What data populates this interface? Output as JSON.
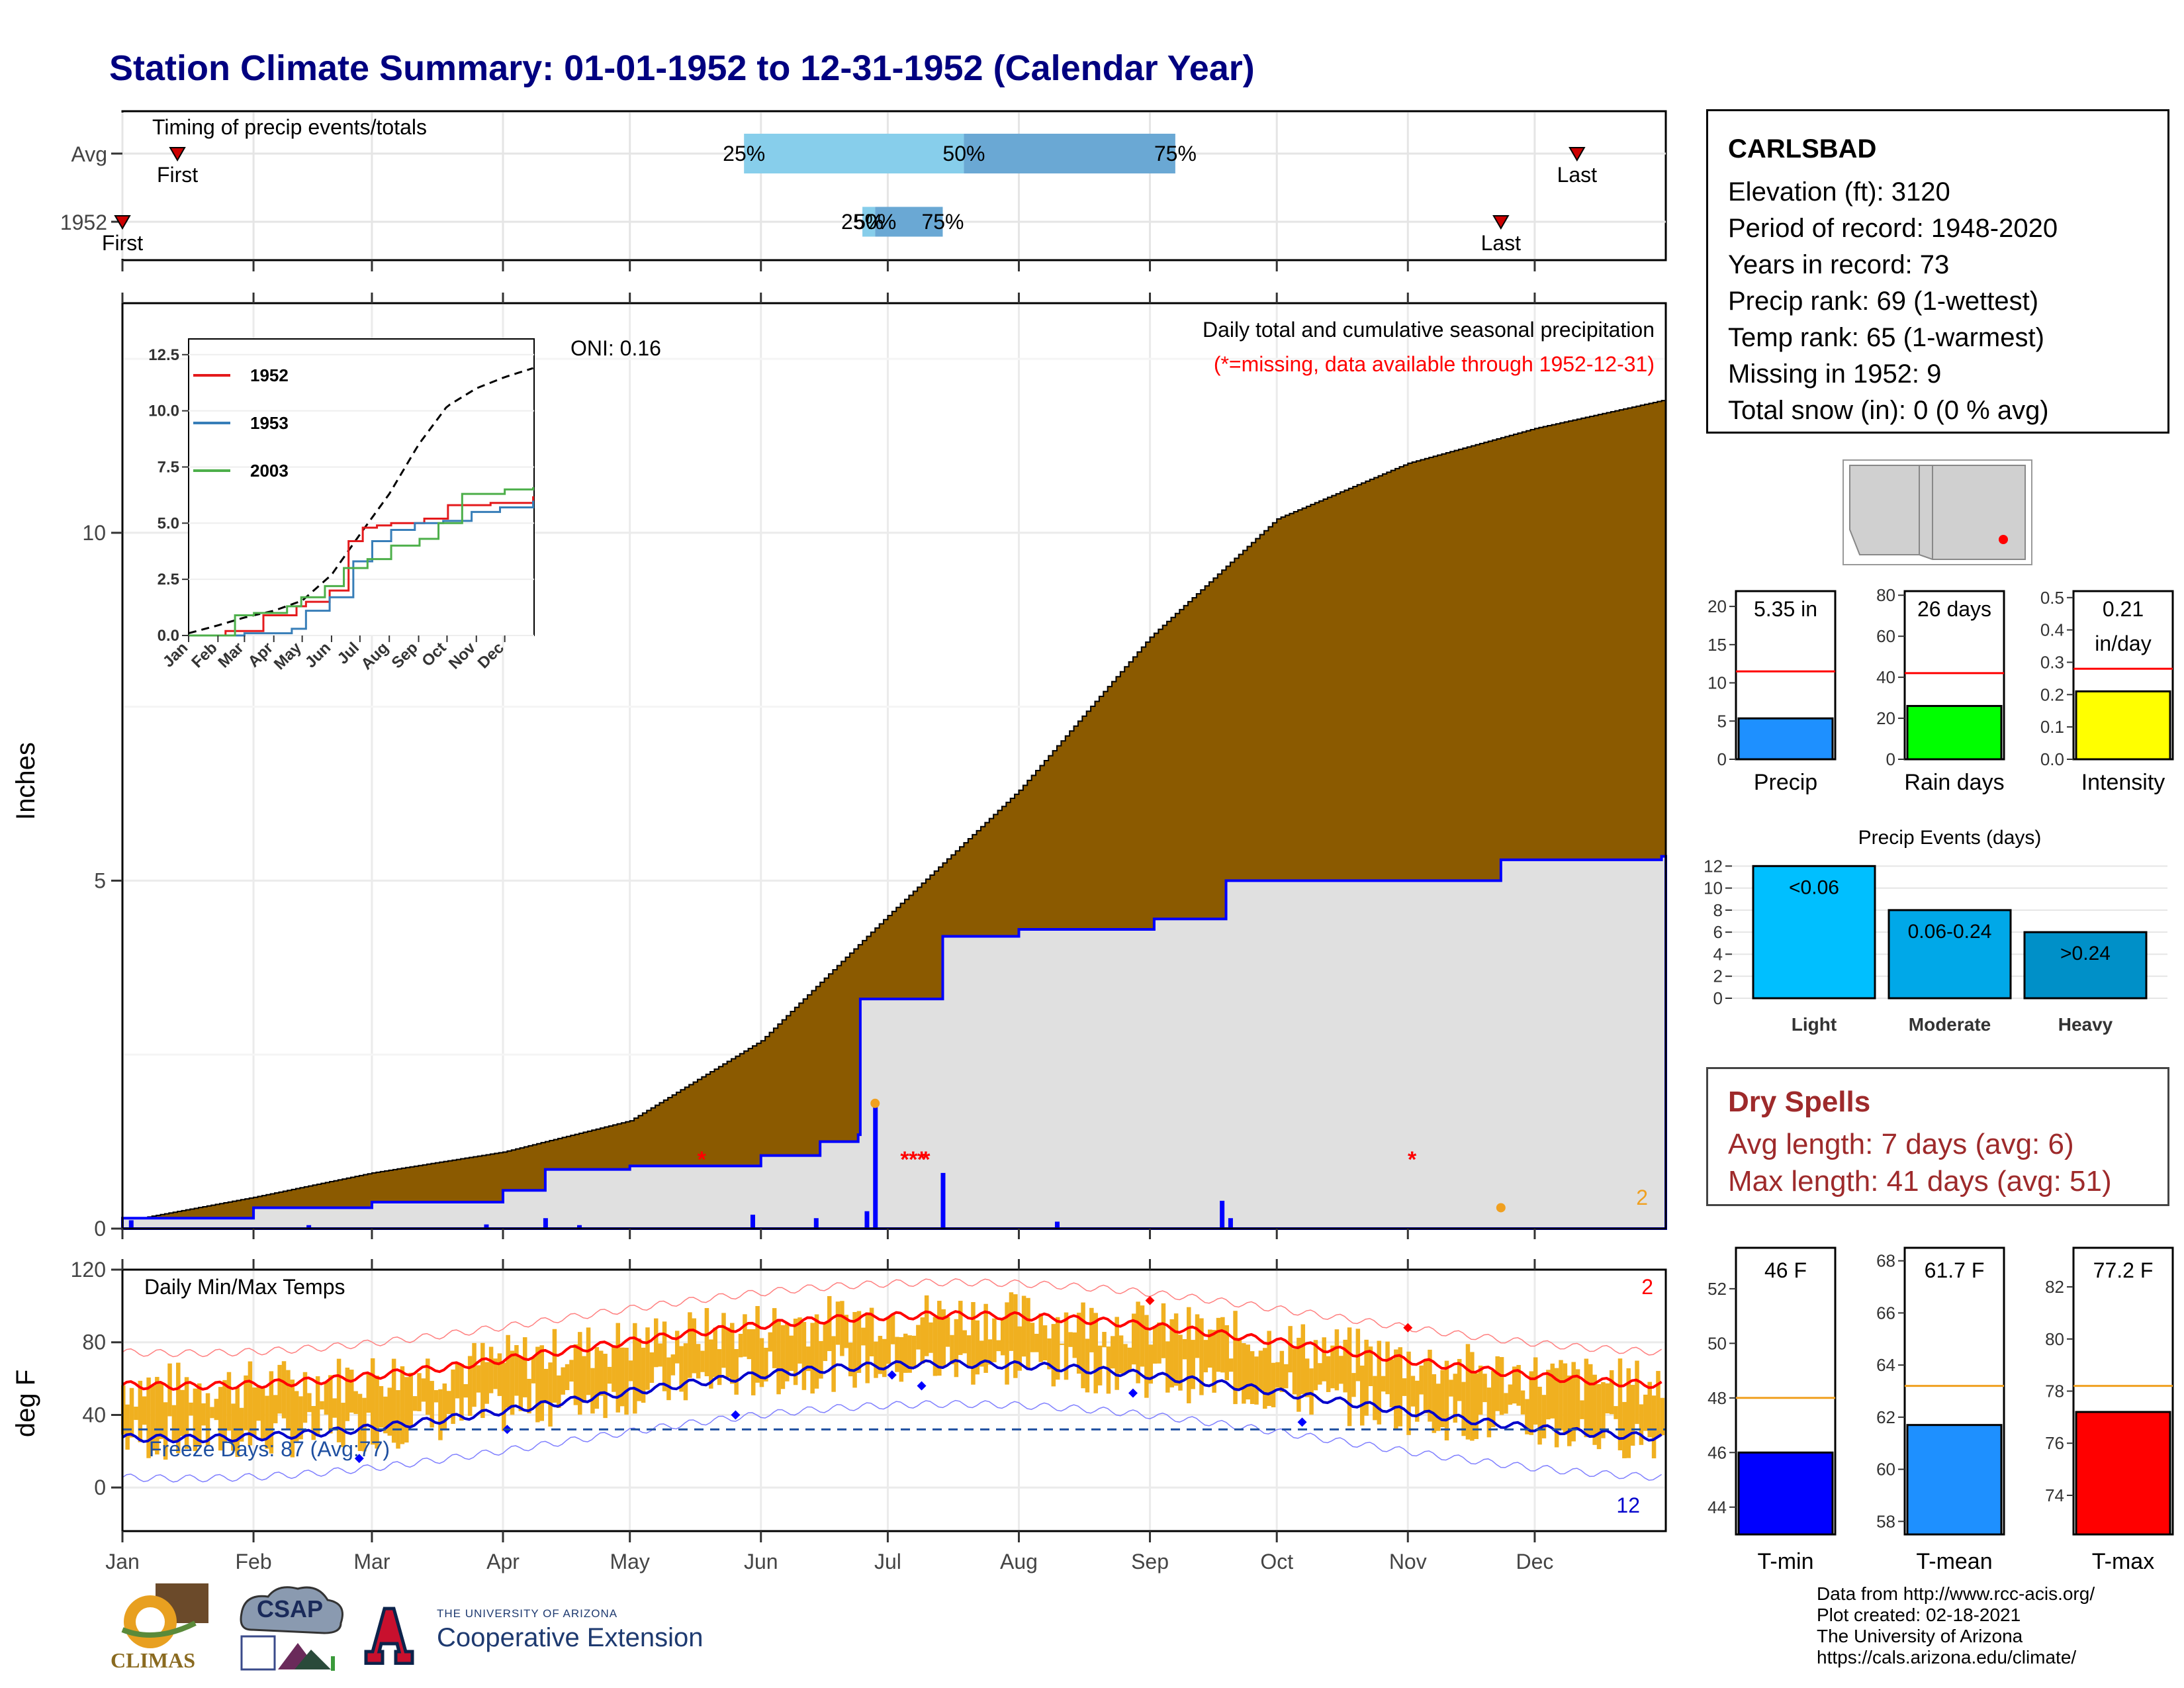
{
  "title": "Station Climate Summary: 01-01-1952 to 12-31-1952 (Calendar Year)",
  "colors": {
    "title": "#000080",
    "cum_avg": "#8B5A00",
    "cum_year": "#0000ff",
    "area_gray": "#e0e0e0",
    "tmax": "#ff0000",
    "tmin": "#0000cc",
    "bars": "#f0b020",
    "dry": "#9e2a2b"
  },
  "timing": {
    "title": "Timing of precip events/totals",
    "rows": [
      {
        "label": "Avg",
        "first_label": "First",
        "last_label": "Last",
        "p25": "25%",
        "p50": "50%",
        "p75": "75%",
        "first_doy": 14,
        "last_doy": 345,
        "q25_doy": 148,
        "q50_doy": 200,
        "q75_doy": 250
      },
      {
        "label": "1952",
        "first_label": "First",
        "last_label": "Last",
        "p25": "25%",
        "p50": "50%",
        "p75": "75%",
        "first_doy": 1,
        "last_doy": 327,
        "q25_doy": 176,
        "q50_doy": 179,
        "q75_doy": 195
      }
    ]
  },
  "precip_panel": {
    "ylabel": "Inches",
    "oni": "ONI: 0.16",
    "note1": "Daily total and cumulative seasonal precipitation",
    "note2": "(*=missing, data available through 1952-12-31)",
    "count_label": "2",
    "yticks": [
      "0",
      "5",
      "10"
    ],
    "months": [
      "Jan",
      "Feb",
      "Mar",
      "Apr",
      "May",
      "Jun",
      "Jul",
      "Aug",
      "Sep",
      "Oct",
      "Nov",
      "Dec"
    ]
  },
  "inset": {
    "yticks": [
      "0.0",
      "2.5",
      "5.0",
      "7.5",
      "10.0",
      "12.5"
    ],
    "months": [
      "Jan",
      "Feb",
      "Mar",
      "Apr",
      "May",
      "Jun",
      "Jul",
      "Aug",
      "Sep",
      "Oct",
      "Nov",
      "Dec"
    ],
    "legend": [
      {
        "name": "1952",
        "color": "#e41a1c"
      },
      {
        "name": "1953",
        "color": "#377eb8"
      },
      {
        "name": "2003",
        "color": "#4daf4a"
      }
    ]
  },
  "temp_panel": {
    "ylabel": "deg F",
    "title": "Daily Min/Max Temps",
    "freeze": "Freeze Days: 87 (Avg:77)",
    "count_hi": "2",
    "count_lo": "12",
    "yticks": [
      "0",
      "40",
      "80",
      "120"
    ]
  },
  "info": {
    "station": "CARLSBAD",
    "lines": [
      "Elevation (ft): 3120",
      "Period of record: 1948-2020",
      "Years in record: 73",
      "Precip rank: 69 (1-wettest)",
      "Temp rank: 65 (1-warmest)",
      "Missing in 1952: 9",
      "Total snow (in): 0 (0 % avg)"
    ]
  },
  "mini_bars": [
    {
      "label": "Precip",
      "value_text": "5.35 in",
      "value": 5.35,
      "avg": 11.5,
      "ymax": 22,
      "ticks": [
        "0",
        "5",
        "10",
        "15",
        "20"
      ],
      "tick_vals": [
        0,
        5,
        10,
        15,
        20
      ],
      "color": "#1e90ff"
    },
    {
      "label": "Rain days",
      "value_text": "26 days",
      "value": 26,
      "avg": 42,
      "ymax": 82,
      "ticks": [
        "0",
        "20",
        "40",
        "60",
        "80"
      ],
      "tick_vals": [
        0,
        20,
        40,
        60,
        80
      ],
      "color": "#00ff00"
    },
    {
      "label": "Intensity",
      "value_text": "0.21",
      "value_text2": "in/day",
      "value": 0.21,
      "avg": 0.28,
      "ymax": 0.52,
      "ticks": [
        "0.0",
        "0.1",
        "0.2",
        "0.3",
        "0.4",
        "0.5"
      ],
      "tick_vals": [
        0,
        0.1,
        0.2,
        0.3,
        0.4,
        0.5
      ],
      "color": "#ffff00"
    }
  ],
  "precip_events": {
    "title": "Precip Events (days)",
    "yticks": [
      "0",
      "2",
      "4",
      "6",
      "8",
      "10",
      "12"
    ],
    "bars": [
      {
        "label": "<0.06",
        "category": "Light",
        "value": 12,
        "color": "#00bfff"
      },
      {
        "label": "0.06-0.24",
        "category": "Moderate",
        "value": 8,
        "color": "#00a8e8"
      },
      {
        "label": ">0.24",
        "category": "Heavy",
        "value": 6,
        "color": "#0090c8"
      }
    ]
  },
  "dry_spells": {
    "title": "Dry Spells",
    "avg": "Avg length: 7 days (avg: 6)",
    "max": "Max length: 41 days (avg: 51)"
  },
  "temp_bars": [
    {
      "label": "T-min",
      "value_text": "46 F",
      "value": 46,
      "avg": 48,
      "ymin": 43,
      "ymax": 53.5,
      "ticks": [
        "44",
        "46",
        "48",
        "50",
        "52"
      ],
      "tick_vals": [
        44,
        46,
        48,
        50,
        52
      ],
      "color": "#0000ff"
    },
    {
      "label": "T-mean",
      "value_text": "61.7 F",
      "value": 61.7,
      "avg": 63.2,
      "ymin": 57.5,
      "ymax": 68.5,
      "ticks": [
        "58",
        "60",
        "62",
        "64",
        "66",
        "68"
      ],
      "tick_vals": [
        58,
        60,
        62,
        64,
        66,
        68
      ],
      "color": "#1e90ff"
    },
    {
      "label": "T-max",
      "value_text": "77.2 F",
      "value": 77.2,
      "avg": 78.2,
      "ymin": 72.5,
      "ymax": 83.5,
      "ticks": [
        "74",
        "76",
        "78",
        "80",
        "82"
      ],
      "tick_vals": [
        74,
        76,
        78,
        80,
        82
      ],
      "color": "#ff0000"
    }
  ],
  "credits": [
    "Data from http://www.rcc-acis.org/",
    "Plot created: 02-18-2021",
    "The University of Arizona",
    "https://cals.arizona.edu/climate/"
  ],
  "logos": {
    "climas": "CLIMAS",
    "csap": "CSAP",
    "ua_small": "THE UNIVERSITY OF ARIZONA",
    "ua_ext": "Cooperative Extension"
  },
  "chart_data": {
    "type": "area",
    "title": "Daily total and cumulative seasonal precipitation",
    "ylabel": "Inches",
    "ylim": [
      0,
      13.5
    ],
    "cumulative_avg": {
      "doy": [
        1,
        32,
        60,
        91,
        121,
        152,
        182,
        213,
        244,
        274,
        305,
        335,
        365
      ],
      "inches": [
        0.1,
        0.45,
        0.8,
        1.1,
        1.55,
        2.7,
        4.5,
        6.3,
        8.5,
        10.2,
        11.0,
        11.5,
        11.9
      ]
    },
    "cumulative_1952": {
      "doy": [
        1,
        32,
        60,
        91,
        101,
        121,
        152,
        166,
        175,
        175.5,
        195,
        213,
        245,
        262,
        327,
        365
      ],
      "inches": [
        0.15,
        0.3,
        0.38,
        0.55,
        0.85,
        0.9,
        1.05,
        1.25,
        1.35,
        3.3,
        4.2,
        4.3,
        4.45,
        5.0,
        5.3,
        5.35
      ]
    },
    "daily_precip": {
      "doy": [
        3,
        45,
        87,
        101,
        109,
        150,
        165,
        177,
        179,
        195,
        222,
        261,
        263
      ],
      "inches": [
        0.12,
        0.05,
        0.06,
        0.15,
        0.05,
        0.2,
        0.15,
        0.25,
        1.8,
        0.8,
        0.1,
        0.4,
        0.15
      ]
    },
    "missing_doy": [
      138,
      186,
      188,
      190,
      191,
      306
    ],
    "temps": {
      "ylim": [
        -20,
        120
      ],
      "avg_tmax_jan": 56,
      "avg_tmax_jul": 95,
      "avg_tmin_jan": 27,
      "avg_tmin_jul": 68,
      "freeze_line": 32
    }
  }
}
